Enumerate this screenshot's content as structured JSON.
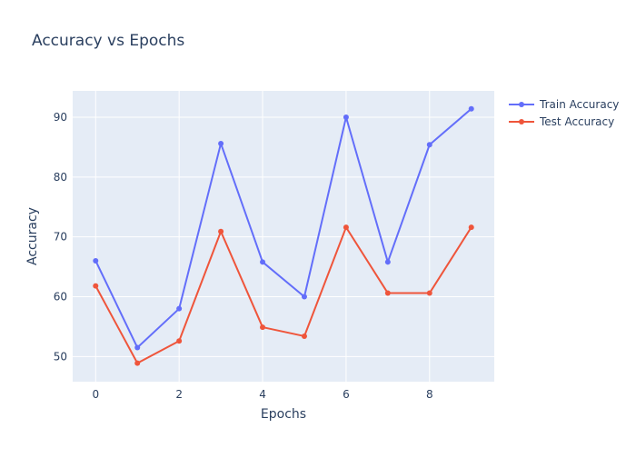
{
  "chart_data": {
    "type": "line",
    "title": "Accuracy vs Epochs",
    "xlabel": "Epochs",
    "ylabel": "Accuracy",
    "x": [
      0,
      1,
      2,
      3,
      4,
      5,
      6,
      7,
      8,
      9
    ],
    "xlim": [
      -0.55,
      9.55
    ],
    "ylim": [
      45.8,
      94.4
    ],
    "xticks": [
      0,
      2,
      4,
      6,
      8
    ],
    "yticks": [
      50,
      60,
      70,
      80,
      90
    ],
    "grid": true,
    "legend_position": "top-right",
    "series": [
      {
        "name": "Train Accuracy",
        "color": "#636efa",
        "values": [
          66.0,
          51.5,
          58.0,
          85.6,
          65.8,
          60.0,
          90.0,
          65.8,
          85.4,
          91.4
        ]
      },
      {
        "name": "Test Accuracy",
        "color": "#ef553b",
        "values": [
          61.8,
          48.9,
          52.6,
          70.9,
          54.9,
          53.4,
          71.6,
          60.6,
          60.6,
          71.6
        ]
      }
    ],
    "plot_background": "#e5ecf6",
    "text_color": "#2a3f5f"
  }
}
